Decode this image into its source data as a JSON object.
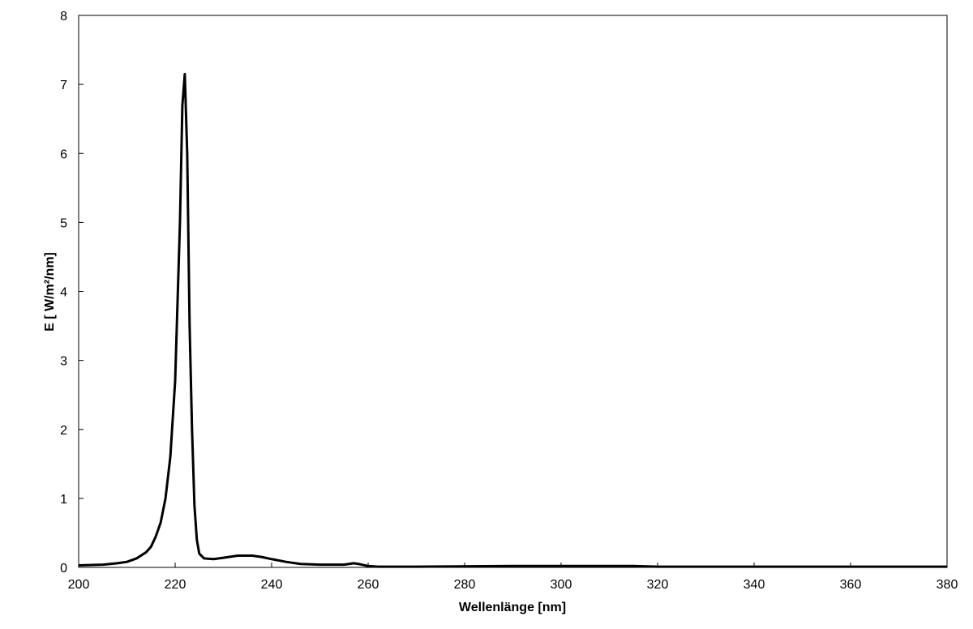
{
  "chart_data": {
    "type": "line",
    "xlabel": "Wellenlänge [nm]",
    "ylabel": "E [ W/m²/nm]",
    "x": [
      200,
      205,
      208,
      210,
      212,
      214,
      215,
      216,
      217,
      218,
      219,
      220,
      221,
      221.5,
      222,
      222.5,
      223,
      223.5,
      224,
      224.5,
      225,
      226,
      228,
      230,
      233,
      236,
      238,
      240,
      243,
      246,
      250,
      255,
      257,
      258,
      260,
      262,
      270,
      290,
      300,
      315,
      320,
      340,
      360,
      380
    ],
    "series": [
      {
        "color": "#000000",
        "values": [
          0.03,
          0.04,
          0.06,
          0.08,
          0.13,
          0.22,
          0.3,
          0.45,
          0.65,
          1.0,
          1.6,
          2.7,
          5.0,
          6.7,
          7.15,
          6.0,
          3.5,
          2.0,
          0.9,
          0.4,
          0.2,
          0.13,
          0.12,
          0.14,
          0.17,
          0.17,
          0.15,
          0.12,
          0.08,
          0.05,
          0.04,
          0.04,
          0.06,
          0.05,
          0.02,
          0.01,
          0.01,
          0.02,
          0.02,
          0.02,
          0.01,
          0.01,
          0.01,
          0.01
        ]
      }
    ],
    "xlim": [
      200,
      380
    ],
    "xticks": [
      200,
      220,
      240,
      260,
      280,
      300,
      320,
      340,
      360,
      380
    ],
    "ylim": [
      0,
      8
    ],
    "yticks": [
      0,
      1,
      2,
      3,
      4,
      5,
      6,
      7,
      8
    ]
  }
}
